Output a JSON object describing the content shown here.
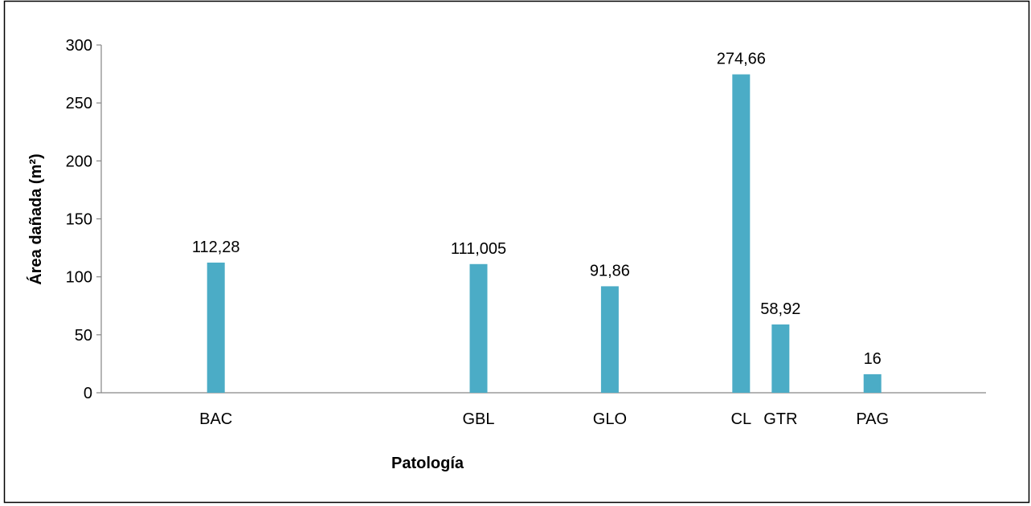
{
  "chart_data": {
    "type": "bar",
    "title": "",
    "xlabel": "Patología",
    "ylabel": "Área dañada (m²)",
    "ylim": [
      0,
      300
    ],
    "yticks": [
      "0",
      "50",
      "100",
      "150",
      "200",
      "250",
      "300"
    ],
    "grid": false,
    "legend": "none",
    "bar_color": "#4BACC6",
    "x_ticks": [
      {
        "label": "BAC",
        "slot": 2
      },
      {
        "label": "GBL",
        "slot": 6
      },
      {
        "label": "GLO",
        "slot": 8
      },
      {
        "label": "CL",
        "slot": 10
      },
      {
        "label": "GTR",
        "slot": 10.6
      },
      {
        "label": "PAG",
        "slot": 12
      }
    ],
    "bars": [
      {
        "slot": 2,
        "value": 112.28,
        "label": "112,28"
      },
      {
        "slot": 6,
        "value": 111.005,
        "label": "111,005"
      },
      {
        "slot": 8,
        "value": 91.86,
        "label": "91,86"
      },
      {
        "slot": 10,
        "value": 274.66,
        "label": "274,66"
      },
      {
        "slot": 10.6,
        "value": 58.92,
        "label": "58,92"
      },
      {
        "slot": 12,
        "value": 16,
        "label": "16"
      }
    ]
  }
}
